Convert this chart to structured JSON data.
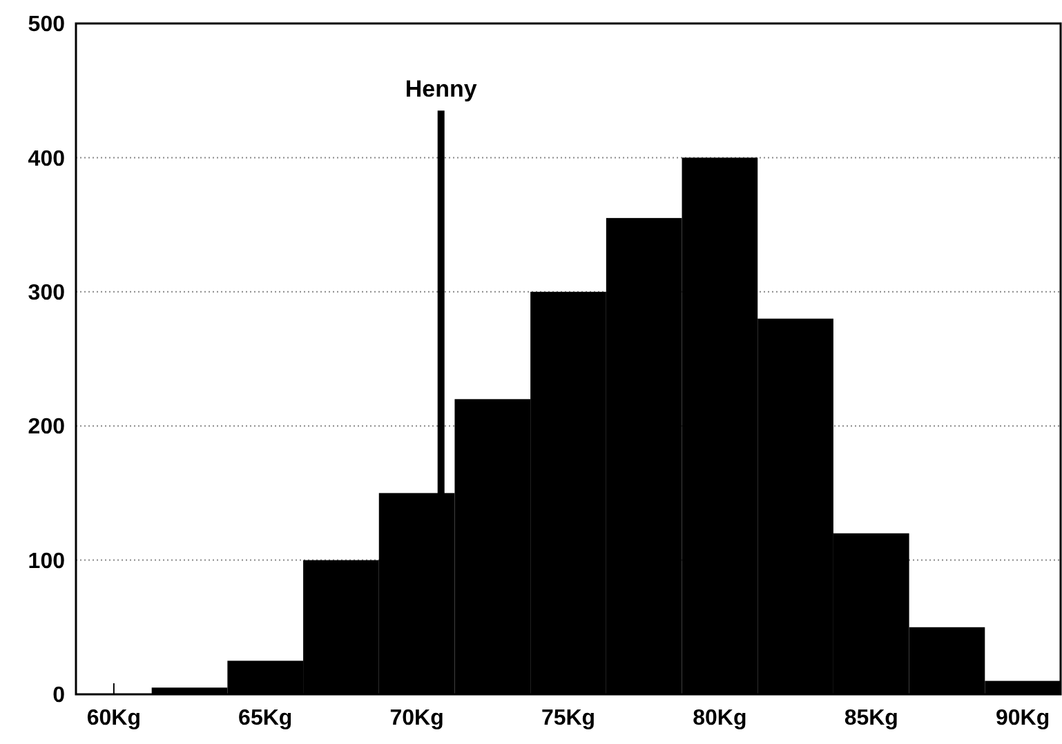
{
  "chart_data": {
    "type": "histogram",
    "bins": [
      61.25,
      63.75,
      66.25,
      68.75,
      71.25,
      73.75,
      76.25,
      78.75,
      81.25,
      83.75,
      86.25,
      88.75,
      91.25
    ],
    "values": [
      5,
      25,
      100,
      150,
      220,
      300,
      355,
      400,
      280,
      120,
      50,
      10
    ],
    "color": "#000000",
    "xlim": [
      58.75,
      91.25
    ],
    "xticks": [
      {
        "value": 60,
        "label": "60Kg"
      },
      {
        "value": 65,
        "label": "65Kg"
      },
      {
        "value": 70,
        "label": "70Kg"
      },
      {
        "value": 75,
        "label": "75Kg"
      },
      {
        "value": 80,
        "label": "80Kg"
      },
      {
        "value": 85,
        "label": "85Kg"
      },
      {
        "value": 90,
        "label": "90Kg"
      }
    ],
    "ylim": [
      0,
      500
    ],
    "yticks": [
      0,
      100,
      200,
      300,
      400,
      500
    ],
    "grid": "y",
    "ref_lines": [
      {
        "axis": "x",
        "value": 70.8,
        "label": "Henny",
        "color": "#000000"
      }
    ]
  }
}
